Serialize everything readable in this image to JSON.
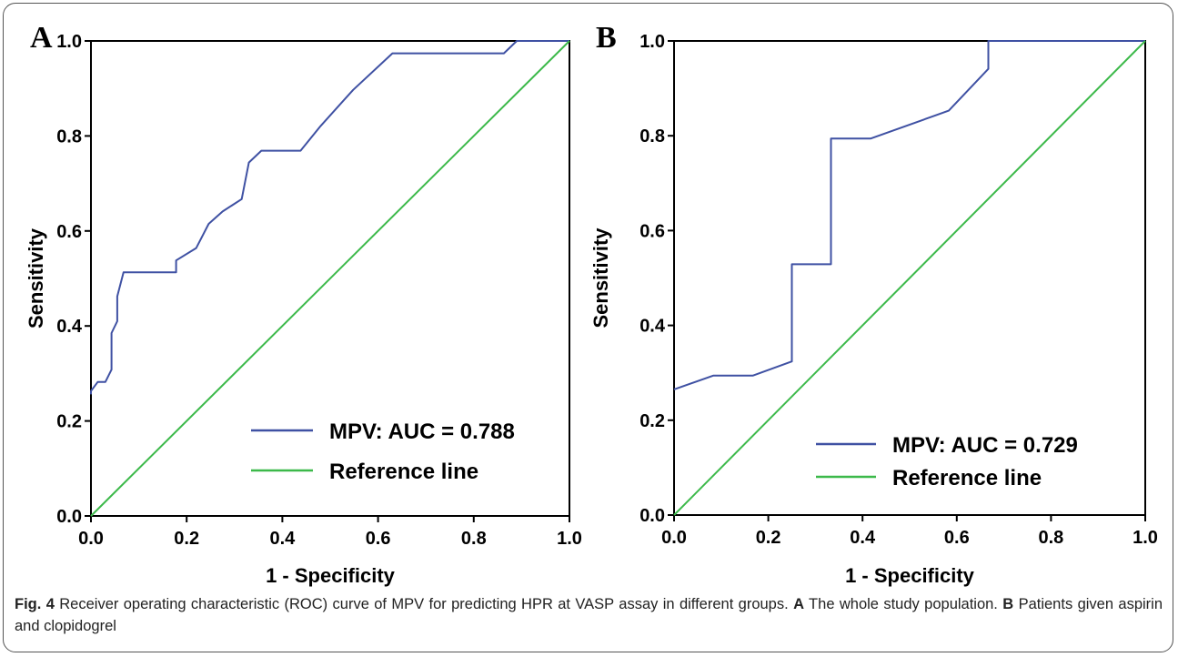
{
  "figure": {
    "caption": {
      "label": "Fig. 4",
      "text": " Receiver operating characteristic (ROC) curve of MPV for predicting HPR at VASP assay in different groups. ",
      "part_a_label": "A",
      "part_a_text": " The whole study population. ",
      "part_b_label": "B",
      "part_b_text": " Patients given aspirin and clopidogrel"
    }
  },
  "chart_data": [
    {
      "type": "line",
      "panel": "A",
      "xlabel": "1 - Specificity",
      "ylabel": "Sensitivity",
      "xlim": [
        0,
        1
      ],
      "ylim": [
        0,
        1
      ],
      "xticks": [
        "0.0",
        "0.2",
        "0.4",
        "0.6",
        "0.8",
        "1.0"
      ],
      "yticks": [
        "0.0",
        "0.2",
        "0.4",
        "0.6",
        "0.8",
        "1.0"
      ],
      "grid": false,
      "legend_position": "bottom-right",
      "series": [
        {
          "name": "MPV: AUC = 0.788",
          "color": "#3f51a3",
          "points": [
            [
              0,
              0.256
            ],
            [
              0,
              0.263
            ],
            [
              0.014,
              0.282
            ],
            [
              0.03,
              0.282
            ],
            [
              0.043,
              0.308
            ],
            [
              0.043,
              0.385
            ],
            [
              0.055,
              0.41
            ],
            [
              0.055,
              0.462
            ],
            [
              0.068,
              0.513
            ],
            [
              0.178,
              0.513
            ],
            [
              0.178,
              0.538
            ],
            [
              0.22,
              0.564
            ],
            [
              0.246,
              0.615
            ],
            [
              0.275,
              0.641
            ],
            [
              0.315,
              0.667
            ],
            [
              0.33,
              0.744
            ],
            [
              0.356,
              0.769
            ],
            [
              0.438,
              0.769
            ],
            [
              0.48,
              0.821
            ],
            [
              0.548,
              0.897
            ],
            [
              0.63,
              0.974
            ],
            [
              0.863,
              0.974
            ],
            [
              0.89,
              1.0
            ],
            [
              1.0,
              1.0
            ]
          ]
        },
        {
          "name": "Reference line",
          "color": "#3cb94a",
          "points": [
            [
              0,
              0
            ],
            [
              1,
              1
            ]
          ]
        }
      ]
    },
    {
      "type": "line",
      "panel": "B",
      "xlabel": "1 - Specificity",
      "ylabel": "Sensitivity",
      "xlim": [
        0,
        1
      ],
      "ylim": [
        0,
        1
      ],
      "xticks": [
        "0.0",
        "0.2",
        "0.4",
        "0.6",
        "0.8",
        "1.0"
      ],
      "yticks": [
        "0.0",
        "0.2",
        "0.4",
        "0.6",
        "0.8",
        "1.0"
      ],
      "grid": false,
      "legend_position": "bottom-right",
      "series": [
        {
          "name": "MPV: AUC = 0.729",
          "color": "#3f51a3",
          "points": [
            [
              0,
              0.265
            ],
            [
              0.083,
              0.294
            ],
            [
              0.167,
              0.294
            ],
            [
              0.25,
              0.324
            ],
            [
              0.25,
              0.529
            ],
            [
              0.333,
              0.529
            ],
            [
              0.333,
              0.794
            ],
            [
              0.417,
              0.794
            ],
            [
              0.583,
              0.853
            ],
            [
              0.667,
              0.941
            ],
            [
              0.667,
              1.0
            ],
            [
              1.0,
              1.0
            ]
          ]
        },
        {
          "name": "Reference line",
          "color": "#3cb94a",
          "points": [
            [
              0,
              0
            ],
            [
              1,
              1
            ]
          ]
        }
      ]
    }
  ]
}
